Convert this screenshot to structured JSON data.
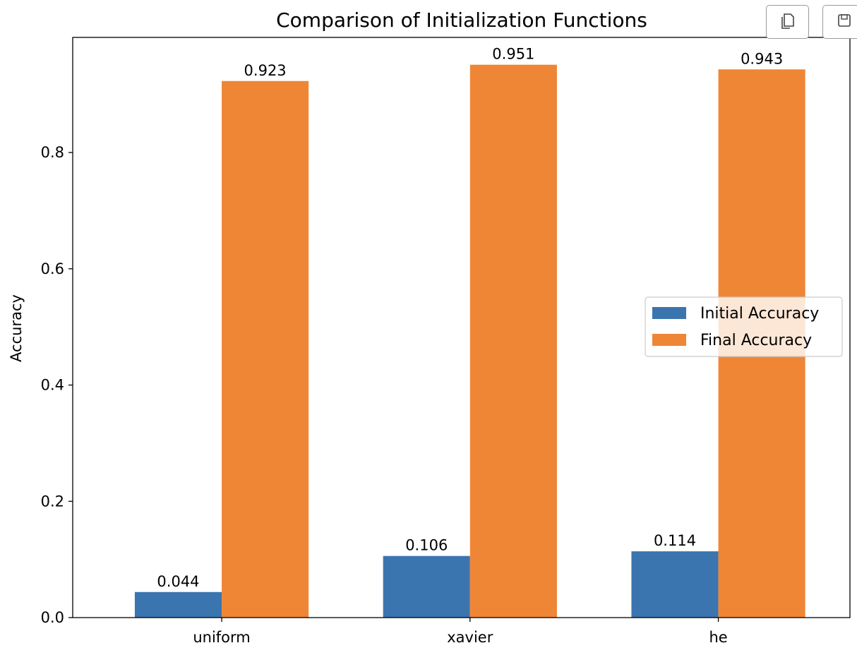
{
  "toolbar": {
    "copy_icon": "copy-icon",
    "save_icon": "floppy-disk-icon"
  },
  "chart_data": {
    "type": "bar",
    "title": "Comparison of Initialization Functions",
    "xlabel": "",
    "ylabel": "Accuracy",
    "categories": [
      "uniform",
      "xavier",
      "he"
    ],
    "series": [
      {
        "name": "Initial Accuracy",
        "values": [
          0.044,
          0.106,
          0.114
        ],
        "labels": [
          "0.044",
          "0.106",
          "0.114"
        ],
        "color": "#3b75af"
      },
      {
        "name": "Final Accuracy",
        "values": [
          0.923,
          0.951,
          0.943
        ],
        "labels": [
          "0.923",
          "0.951",
          "0.943"
        ],
        "color": "#ef8636"
      }
    ],
    "ylim": [
      0,
      0.998
    ],
    "yticks": [
      0.0,
      0.2,
      0.4,
      0.6,
      0.8
    ],
    "ytick_labels": [
      "0.0",
      "0.2",
      "0.4",
      "0.6",
      "0.8"
    ],
    "grid": false,
    "legend": "center-right"
  }
}
